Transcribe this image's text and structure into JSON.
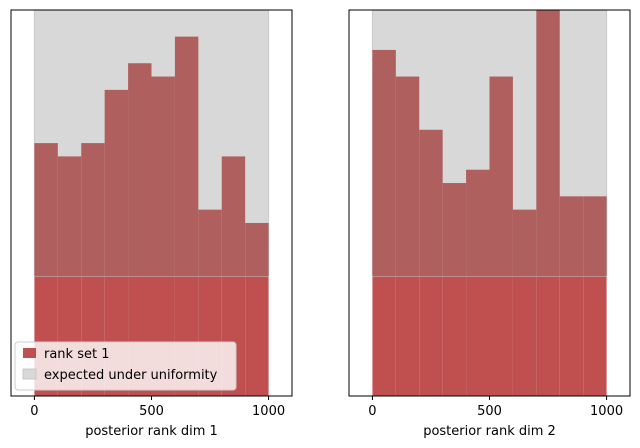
{
  "chart_data": [
    {
      "type": "bar",
      "xlabel": "posterior rank dim 1",
      "xlim": [
        -100,
        1100
      ],
      "xticks": [
        0,
        500,
        1000
      ],
      "ylim": [
        0,
        29
      ],
      "bin_edges": [
        0,
        100,
        200,
        300,
        400,
        500,
        600,
        700,
        800,
        900,
        1000
      ],
      "series": [
        {
          "name": "rank set 1",
          "values": [
            19,
            18,
            19,
            23,
            25,
            24,
            27,
            14,
            18,
            13
          ]
        }
      ],
      "uniform_band": {
        "name": "expected under uniformity",
        "low": 9,
        "high": 29
      },
      "legend": "lower-left"
    },
    {
      "type": "bar",
      "xlabel": "posterior rank dim 2",
      "xlim": [
        -100,
        1100
      ],
      "xticks": [
        0,
        500,
        1000
      ],
      "ylim": [
        0,
        29
      ],
      "bin_edges": [
        0,
        100,
        200,
        300,
        400,
        500,
        600,
        700,
        800,
        900,
        1000
      ],
      "series": [
        {
          "name": "rank set 1",
          "values": [
            26,
            24,
            20,
            16,
            17,
            24,
            14,
            29,
            15,
            15
          ]
        }
      ],
      "uniform_band": {
        "name": "expected under uniformity",
        "low": 9,
        "high": 29
      }
    }
  ],
  "colors": {
    "bar": "#c0504f",
    "band": "#d8d8d8",
    "band_edge": "#c8c8c8",
    "overlap": "#af5f5e"
  }
}
